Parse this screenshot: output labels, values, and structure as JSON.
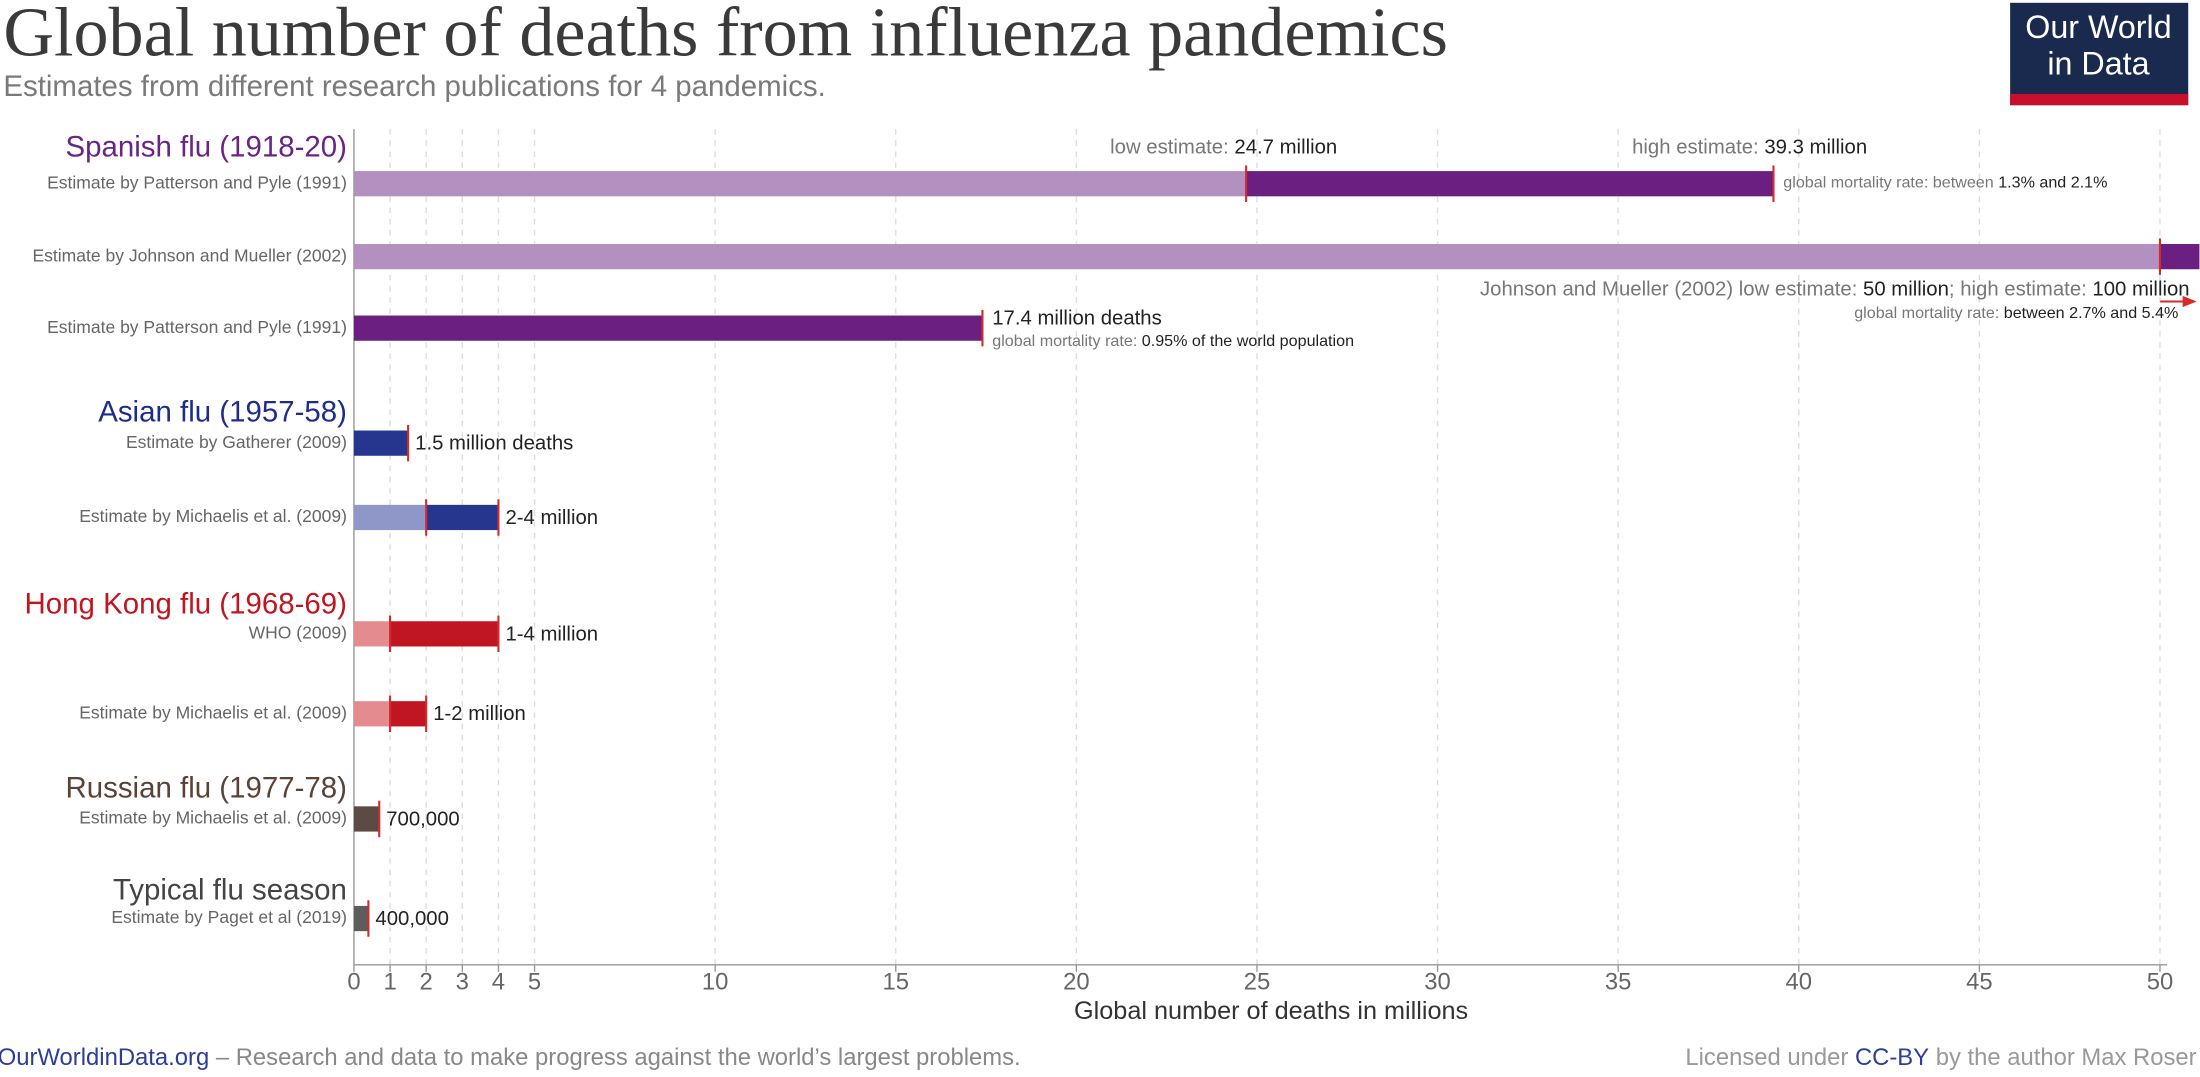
{
  "chart_data": {
    "type": "range-bar",
    "title": "Global number of deaths from influenza pandemics",
    "subtitle": "Estimates from different research publications for 4 pandemics.",
    "x_label": "Global number of deaths in millions",
    "xlim": [
      0,
      50.2
    ],
    "xticks": [
      0,
      1,
      2,
      3,
      4,
      5,
      10,
      15,
      20,
      25,
      30,
      35,
      40,
      45,
      50
    ],
    "grid": true,
    "marker_color": "#d42a2a",
    "groups": [
      {
        "name": "Spanish flu (1918-20)",
        "name_color": "#6a2486",
        "color": "#6b1f80",
        "light_color": "#b291c0",
        "rows": [
          {
            "label": "Estimate by Patterson and Pyle (1991)",
            "low": 24.7,
            "high": 39.3,
            "annotations": [
              [
                "low estimate: ",
                "24.7 million"
              ],
              [
                "high estimate: ",
                "39.3 million"
              ],
              [
                "global mortality rate: between ",
                "1.3% and 2.1%"
              ]
            ]
          },
          {
            "label": "Estimate by Johnson and Mueller (2002)",
            "low": 50,
            "high": 100,
            "annotations": [
              [
                "Johnson and Mueller (2002) low estimate: ",
                "50 million",
                "; high estimate: ",
                "100 million"
              ],
              [
                "global mortality rate: ",
                "between 2.7% and 5.4%"
              ]
            ]
          },
          {
            "label": "Estimate by Patterson and Pyle (1991)",
            "value": 17.4,
            "annotations": [
              [
                "17.4 million deaths"
              ],
              [
                "global mortality rate: ",
                "0.95% of the world population"
              ]
            ]
          }
        ]
      },
      {
        "name": "Asian flu (1957-58)",
        "name_color": "#1e2d8c",
        "color": "#26368f",
        "light_color": "#8f97c8",
        "rows": [
          {
            "label": "Estimate by Gatherer (2009)",
            "value": 1.5,
            "annotations": [
              [
                "1.5 million deaths"
              ]
            ]
          },
          {
            "label": "Estimate by Michaelis et al. (2009)",
            "low": 2,
            "high": 4,
            "annotations": [
              [
                "2-4 million"
              ]
            ]
          }
        ]
      },
      {
        "name": "Hong Kong flu (1968-69)",
        "name_color": "#c0161f",
        "color": "#bf1622",
        "light_color": "#e38b8f",
        "rows": [
          {
            "label": "WHO (2009)",
            "low": 1,
            "high": 4,
            "annotations": [
              [
                "1-4 million"
              ]
            ]
          },
          {
            "label": "Estimate by Michaelis et al. (2009)",
            "low": 1,
            "high": 2,
            "annotations": [
              [
                "1-2 million"
              ]
            ]
          }
        ]
      },
      {
        "name": "Russian flu (1977-78)",
        "name_color": "#5b4236",
        "color": "#5c4a44",
        "light_color": "#a89a95",
        "rows": [
          {
            "label": "Estimate by Michaelis et al. (2009)",
            "value": 0.7,
            "annotations": [
              [
                "700,000"
              ]
            ]
          }
        ]
      },
      {
        "name": "Typical flu season",
        "name_color": "#444444",
        "color": "#5d5d5d",
        "light_color": "#aaaaaa",
        "rows": [
          {
            "label": "Estimate by Paget et al (2019)",
            "value": 0.4,
            "annotations": [
              [
                "400,000"
              ]
            ]
          }
        ]
      }
    ]
  },
  "logo": [
    "Our World",
    "in Data"
  ],
  "footer": {
    "left": [
      "OurWorldinData.org",
      " – Research and data to make progress against the world’s largest problems."
    ],
    "right": [
      "Licensed under ",
      "CC-BY",
      " by the author Max Roser"
    ]
  }
}
